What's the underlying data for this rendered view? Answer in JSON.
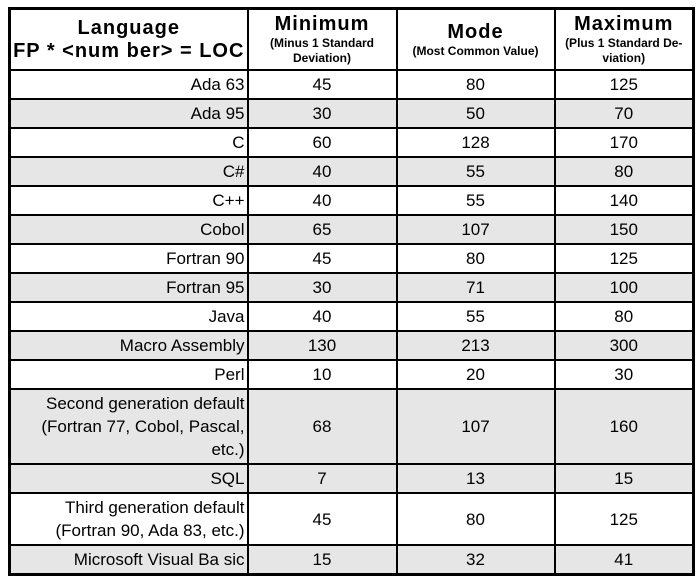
{
  "colors": {
    "background": "#ffffff",
    "shaded_row": "#e6e6e6",
    "border": "#000000",
    "text": "#000000"
  },
  "table": {
    "header": {
      "language": {
        "title": "Language",
        "subtitle": "FP * <num ber> = LOC"
      },
      "minimum": {
        "title": "Minimum",
        "subtitle": "(Minus 1 Standard\nDeviation)"
      },
      "mode": {
        "title": "Mode",
        "subtitle": "(Most Common Value)"
      },
      "maximum": {
        "title": "Maximum",
        "subtitle": "(Plus 1 Standard De-\nviation)"
      }
    },
    "rows": [
      {
        "language": "Ada 63",
        "minimum": "45",
        "mode": "80",
        "maximum": "125",
        "shaded": false
      },
      {
        "language": "Ada 95",
        "minimum": "30",
        "mode": "50",
        "maximum": "70",
        "shaded": true
      },
      {
        "language": "C",
        "minimum": "60",
        "mode": "128",
        "maximum": "170",
        "shaded": false
      },
      {
        "language": "C#",
        "minimum": "40",
        "mode": "55",
        "maximum": "80",
        "shaded": true
      },
      {
        "language": "C++",
        "minimum": "40",
        "mode": "55",
        "maximum": "140",
        "shaded": false
      },
      {
        "language": "Cobol",
        "minimum": "65",
        "mode": "107",
        "maximum": "150",
        "shaded": true
      },
      {
        "language": "Fortran 90",
        "minimum": "45",
        "mode": "80",
        "maximum": "125",
        "shaded": false
      },
      {
        "language": "Fortran 95",
        "minimum": "30",
        "mode": "71",
        "maximum": "100",
        "shaded": true
      },
      {
        "language": "Java",
        "minimum": "40",
        "mode": "55",
        "maximum": "80",
        "shaded": false
      },
      {
        "language": "Macro Assembly",
        "minimum": "130",
        "mode": "213",
        "maximum": "300",
        "shaded": true
      },
      {
        "language": "Perl",
        "minimum": "10",
        "mode": "20",
        "maximum": "30",
        "shaded": false
      },
      {
        "language": "Second generation default\n(Fortran 77, Cobol, Pascal,\netc.)",
        "minimum": "68",
        "mode": "107",
        "maximum": "160",
        "shaded": true
      },
      {
        "language": "SQL",
        "minimum": "7",
        "mode": "13",
        "maximum": "15",
        "shaded": true
      },
      {
        "language": "Third generation default\n(Fortran 90, Ada 83, etc.)",
        "minimum": "45",
        "mode": "80",
        "maximum": "125",
        "shaded": false
      },
      {
        "language": "Microsoft Visual Ba sic",
        "minimum": "15",
        "mode": "32",
        "maximum": "41",
        "shaded": true
      }
    ]
  }
}
